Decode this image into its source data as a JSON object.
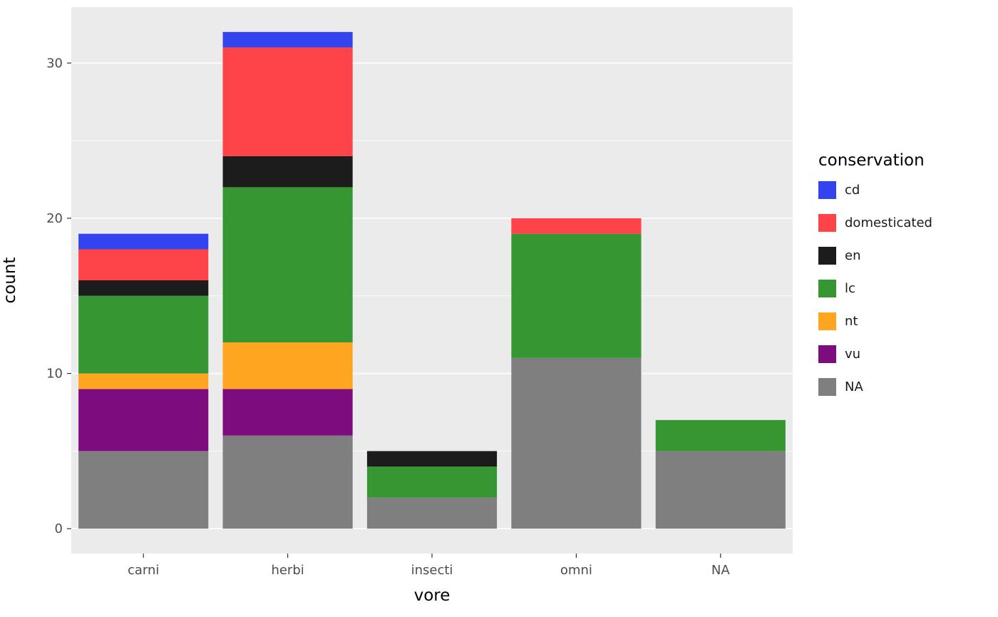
{
  "chart_data": {
    "type": "bar",
    "stacked": true,
    "title": "",
    "xlabel": "vore",
    "ylabel": "count",
    "legend_title": "conservation",
    "legend_position": "right",
    "categories": [
      "carni",
      "herbi",
      "insecti",
      "omni",
      "NA"
    ],
    "series": [
      {
        "name": "cd",
        "color": "#3344EE",
        "values": [
          1,
          1,
          0,
          0,
          0
        ]
      },
      {
        "name": "domesticated",
        "color": "#FF4449",
        "values": [
          2,
          7,
          0,
          1,
          0
        ]
      },
      {
        "name": "en",
        "color": "#1C1C1C",
        "values": [
          1,
          2,
          1,
          0,
          0
        ]
      },
      {
        "name": "lc",
        "color": "#359632",
        "values": [
          5,
          10,
          2,
          8,
          2
        ]
      },
      {
        "name": "nt",
        "color": "#FFA51F",
        "values": [
          1,
          3,
          0,
          0,
          0
        ]
      },
      {
        "name": "vu",
        "color": "#7D0C7E",
        "values": [
          4,
          3,
          0,
          0,
          0
        ]
      },
      {
        "name": "NA",
        "color": "#7F7F7F",
        "values": [
          5,
          6,
          2,
          11,
          5
        ]
      }
    ],
    "stack_order": "legend-reversed-bottom-up",
    "totals": [
      19,
      32,
      5,
      20,
      7
    ],
    "yticks": [
      0,
      10,
      20,
      30
    ],
    "yticks_minor": [
      5,
      15,
      25
    ],
    "ylim": [
      -1.6,
      33.6
    ],
    "grid": true,
    "panel_bg": "#EBEBEB",
    "grid_color": "#FFFFFF",
    "tick_color": "#333333",
    "axis_text_color": "#4D4D4D"
  }
}
